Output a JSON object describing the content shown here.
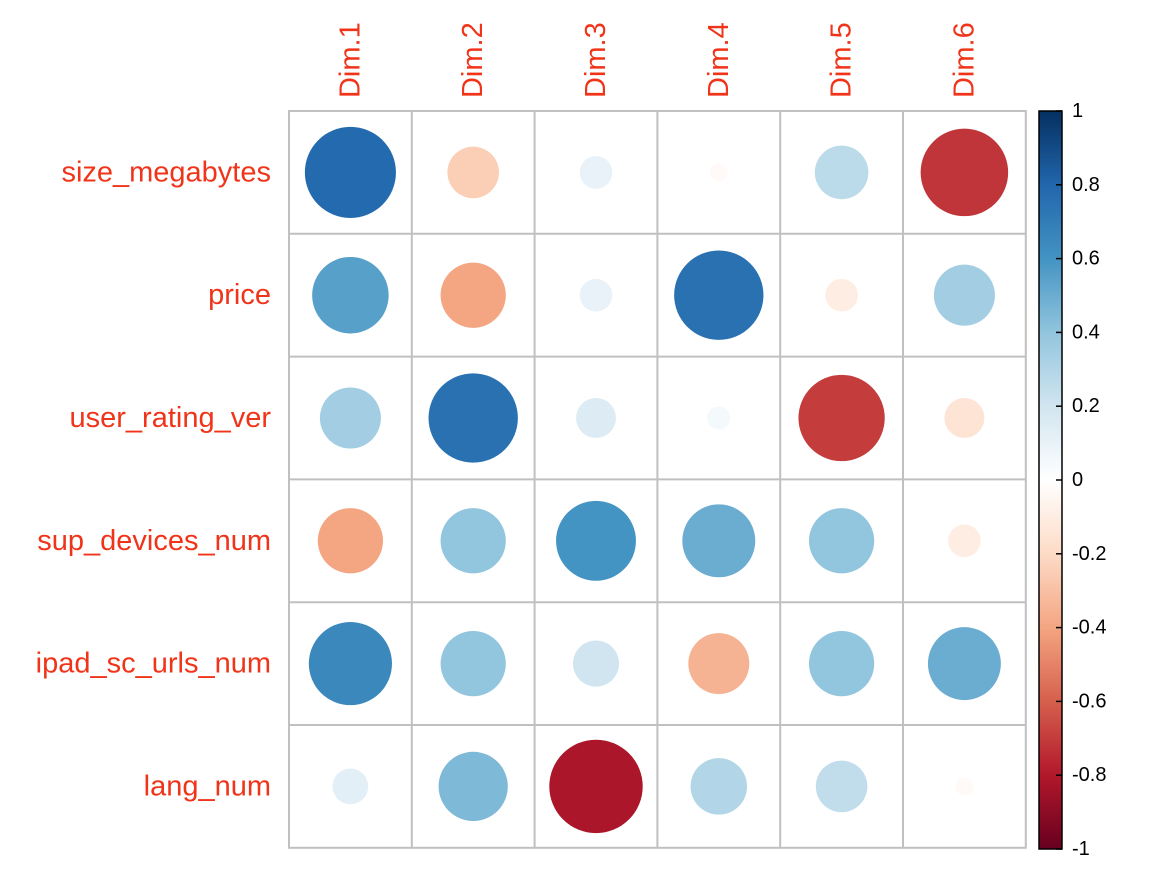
{
  "chart_data": {
    "type": "heatmap",
    "style": "circle correlation plot",
    "rows": [
      "size_megabytes",
      "price",
      "user_rating_ver",
      "sup_devices_num",
      "ipad_sc_urls_num",
      "lang_num"
    ],
    "columns": [
      "Dim.1",
      "Dim.2",
      "Dim.3",
      "Dim.4",
      "Dim.5",
      "Dim.6"
    ],
    "values": [
      [
        0.78,
        -0.25,
        0.1,
        -0.03,
        0.27,
        -0.72
      ],
      [
        0.55,
        -0.4,
        0.1,
        0.75,
        -0.1,
        0.35
      ],
      [
        0.35,
        0.75,
        0.15,
        0.05,
        -0.7,
        -0.15
      ],
      [
        -0.4,
        0.4,
        0.6,
        0.5,
        0.4,
        -0.1
      ],
      [
        0.65,
        0.4,
        0.2,
        -0.35,
        0.4,
        0.5
      ],
      [
        0.12,
        0.45,
        -0.82,
        0.3,
        0.25,
        -0.03
      ]
    ],
    "colorbar": {
      "ticks": [
        "1",
        "0.8",
        "0.6",
        "0.4",
        "0.2",
        "0",
        "-0.2",
        "-0.4",
        "-0.6",
        "-0.8",
        "-1"
      ],
      "range": [
        -1,
        1
      ]
    },
    "label_color": "#f0341a",
    "palette": [
      "#67001f",
      "#b2182b",
      "#d6604d",
      "#f4a582",
      "#fddbc7",
      "#ffffff",
      "#d1e5f0",
      "#92c5de",
      "#4393c3",
      "#2166ac",
      "#053061"
    ]
  }
}
